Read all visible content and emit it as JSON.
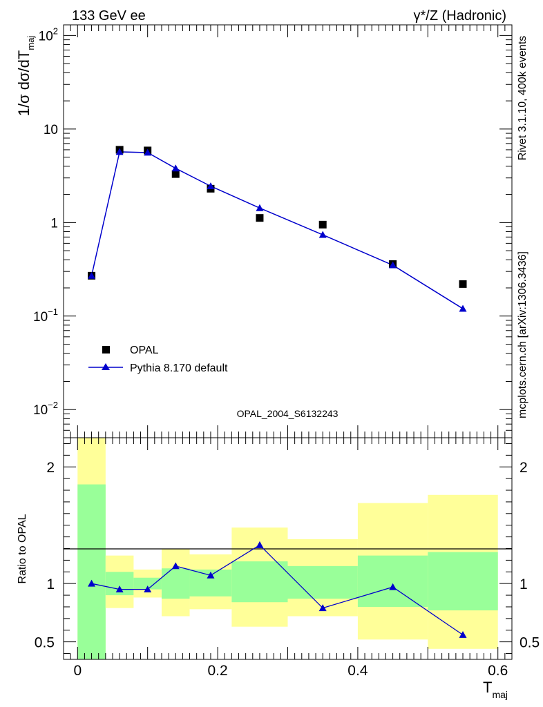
{
  "header": {
    "left": "133 GeV ee",
    "right_main": "γ*/Z (Hadronic)"
  },
  "side": {
    "rivet": "Rivet 3.1.10,  400k events",
    "mcplots": "mcplots.cern.ch [arXiv:1306.3436]"
  },
  "colors": {
    "mc": "#0000cc",
    "data": "#000000",
    "band_inner": "#99ff99",
    "band_outer": "#ffff99",
    "watermark": "#999999"
  },
  "chart_data": [
    {
      "type": "scatter",
      "panel": "main",
      "ylabel": "1/σ dσ/dT",
      "ylabel_sub": "maj",
      "y_scale": "log",
      "ylim": [
        0.005,
        130
      ],
      "xlim": [
        -0.02,
        0.62
      ],
      "y_ticks": [
        {
          "v": 0.01,
          "mant": "10",
          "exp": "−2"
        },
        {
          "v": 0.1,
          "mant": "10",
          "exp": "−1"
        },
        {
          "v": 1,
          "mant": "1",
          "exp": ""
        },
        {
          "v": 10,
          "mant": "10",
          "exp": ""
        },
        {
          "v": 100,
          "mant": "10",
          "exp": "2"
        }
      ],
      "watermark": "OPAL_2004_S6132243",
      "legend_position": "lower-left",
      "series": [
        {
          "name": "OPAL",
          "marker": "square",
          "x": [
            0.02,
            0.06,
            0.1,
            0.14,
            0.19,
            0.26,
            0.35,
            0.45,
            0.55
          ],
          "y": [
            0.27,
            6.0,
            5.9,
            3.3,
            2.3,
            1.12,
            0.95,
            0.36,
            0.22
          ]
        },
        {
          "name": "Pythia 8.170 default",
          "marker": "triangle",
          "x": [
            0.02,
            0.06,
            0.1,
            0.14,
            0.19,
            0.26,
            0.35,
            0.45,
            0.55
          ],
          "y": [
            0.27,
            5.7,
            5.6,
            3.8,
            2.45,
            1.43,
            0.74,
            0.35,
            0.12
          ]
        }
      ]
    },
    {
      "type": "line",
      "panel": "ratio",
      "ylabel": "Ratio to OPAL",
      "xlabel": "T",
      "xlabel_sub": "maj",
      "ylim": [
        0.35,
        2.25
      ],
      "xlim": [
        -0.02,
        0.62
      ],
      "x_ticks": [
        "0",
        "0.2",
        "0.4",
        "0.6"
      ],
      "x_tick_values": [
        0,
        0.2,
        0.4,
        0.6
      ],
      "y_ticks": [
        "0.5",
        "1",
        "2"
      ],
      "y_tick_values": [
        0.5,
        1,
        2
      ],
      "bins": [
        {
          "lo": 0.0,
          "hi": 0.04,
          "in_lo": 0.3,
          "in_hi": 1.85,
          "out_lo": 0.3,
          "out_hi": 2.3
        },
        {
          "lo": 0.04,
          "hi": 0.08,
          "in_lo": 0.9,
          "in_hi": 1.1,
          "out_lo": 0.79,
          "out_hi": 1.24
        },
        {
          "lo": 0.08,
          "hi": 0.12,
          "in_lo": 0.95,
          "in_hi": 1.05,
          "out_lo": 0.88,
          "out_hi": 1.12
        },
        {
          "lo": 0.12,
          "hi": 0.16,
          "in_lo": 0.87,
          "in_hi": 1.13,
          "out_lo": 0.72,
          "out_hi": 1.3
        },
        {
          "lo": 0.16,
          "hi": 0.22,
          "in_lo": 0.89,
          "in_hi": 1.12,
          "out_lo": 0.78,
          "out_hi": 1.25
        },
        {
          "lo": 0.22,
          "hi": 0.3,
          "in_lo": 0.84,
          "in_hi": 1.19,
          "out_lo": 0.63,
          "out_hi": 1.48
        },
        {
          "lo": 0.3,
          "hi": 0.4,
          "in_lo": 0.87,
          "in_hi": 1.15,
          "out_lo": 0.72,
          "out_hi": 1.38
        },
        {
          "lo": 0.4,
          "hi": 0.5,
          "in_lo": 0.8,
          "in_hi": 1.24,
          "out_lo": 0.52,
          "out_hi": 1.69
        },
        {
          "lo": 0.5,
          "hi": 0.6,
          "in_lo": 0.77,
          "in_hi": 1.27,
          "out_lo": 0.44,
          "out_hi": 1.76
        }
      ],
      "series": [
        {
          "name": "Pythia 8.170 default",
          "x": [
            0.02,
            0.06,
            0.1,
            0.14,
            0.19,
            0.26,
            0.35,
            0.45,
            0.55
          ],
          "y": [
            1.0,
            0.95,
            0.95,
            1.15,
            1.07,
            1.33,
            0.79,
            0.97,
            0.56
          ]
        }
      ]
    }
  ]
}
